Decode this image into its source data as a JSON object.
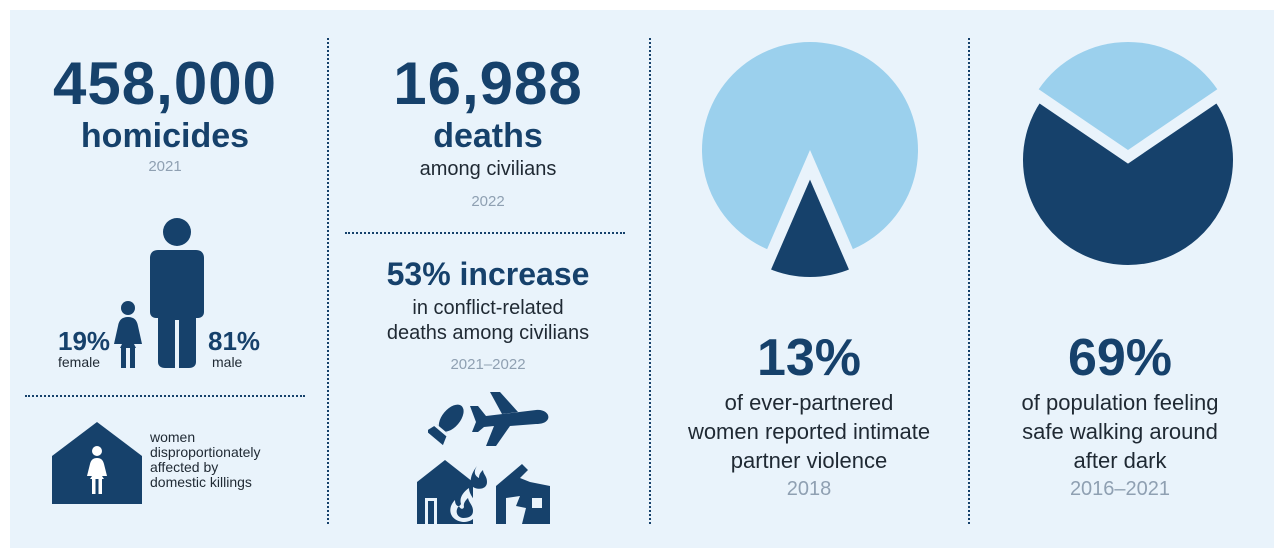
{
  "colors": {
    "background": "#e9f3fb",
    "navy": "#16416b",
    "light_blue": "#9bd0ed",
    "caption_grey": "#8fa0b2"
  },
  "col1": {
    "number": "458,000",
    "label": "homicides",
    "year": "2021",
    "female_pct": "19%",
    "female_label": "female",
    "male_pct": "81%",
    "male_label": "male",
    "female_share": 0.19,
    "male_share": 0.81,
    "note": [
      "women",
      "disproportionately",
      "affected by",
      "domestic killings"
    ],
    "icons": [
      "female-person-icon",
      "male-person-icon",
      "house-with-woman-icon"
    ]
  },
  "col2": {
    "number": "16,988",
    "label": "deaths",
    "sublabel": "among civilians",
    "year": "2022",
    "increase_headline": "53% increase",
    "increase_lines": [
      "in conflict-related",
      "deaths among civilians"
    ],
    "increase_years": "2021–2022",
    "icons": [
      "bomb-icon",
      "airplane-icon",
      "burning-house-icon",
      "destroyed-house-icon"
    ]
  },
  "col3": {
    "percent": "13%",
    "share": 0.13,
    "lines": [
      "of ever-partnered",
      "women reported intimate",
      "partner violence"
    ],
    "year": "2018"
  },
  "col4": {
    "percent": "69%",
    "share": 0.69,
    "lines": [
      "of population feeling",
      "safe walking around",
      "after dark"
    ],
    "years": "2016–2021"
  }
}
